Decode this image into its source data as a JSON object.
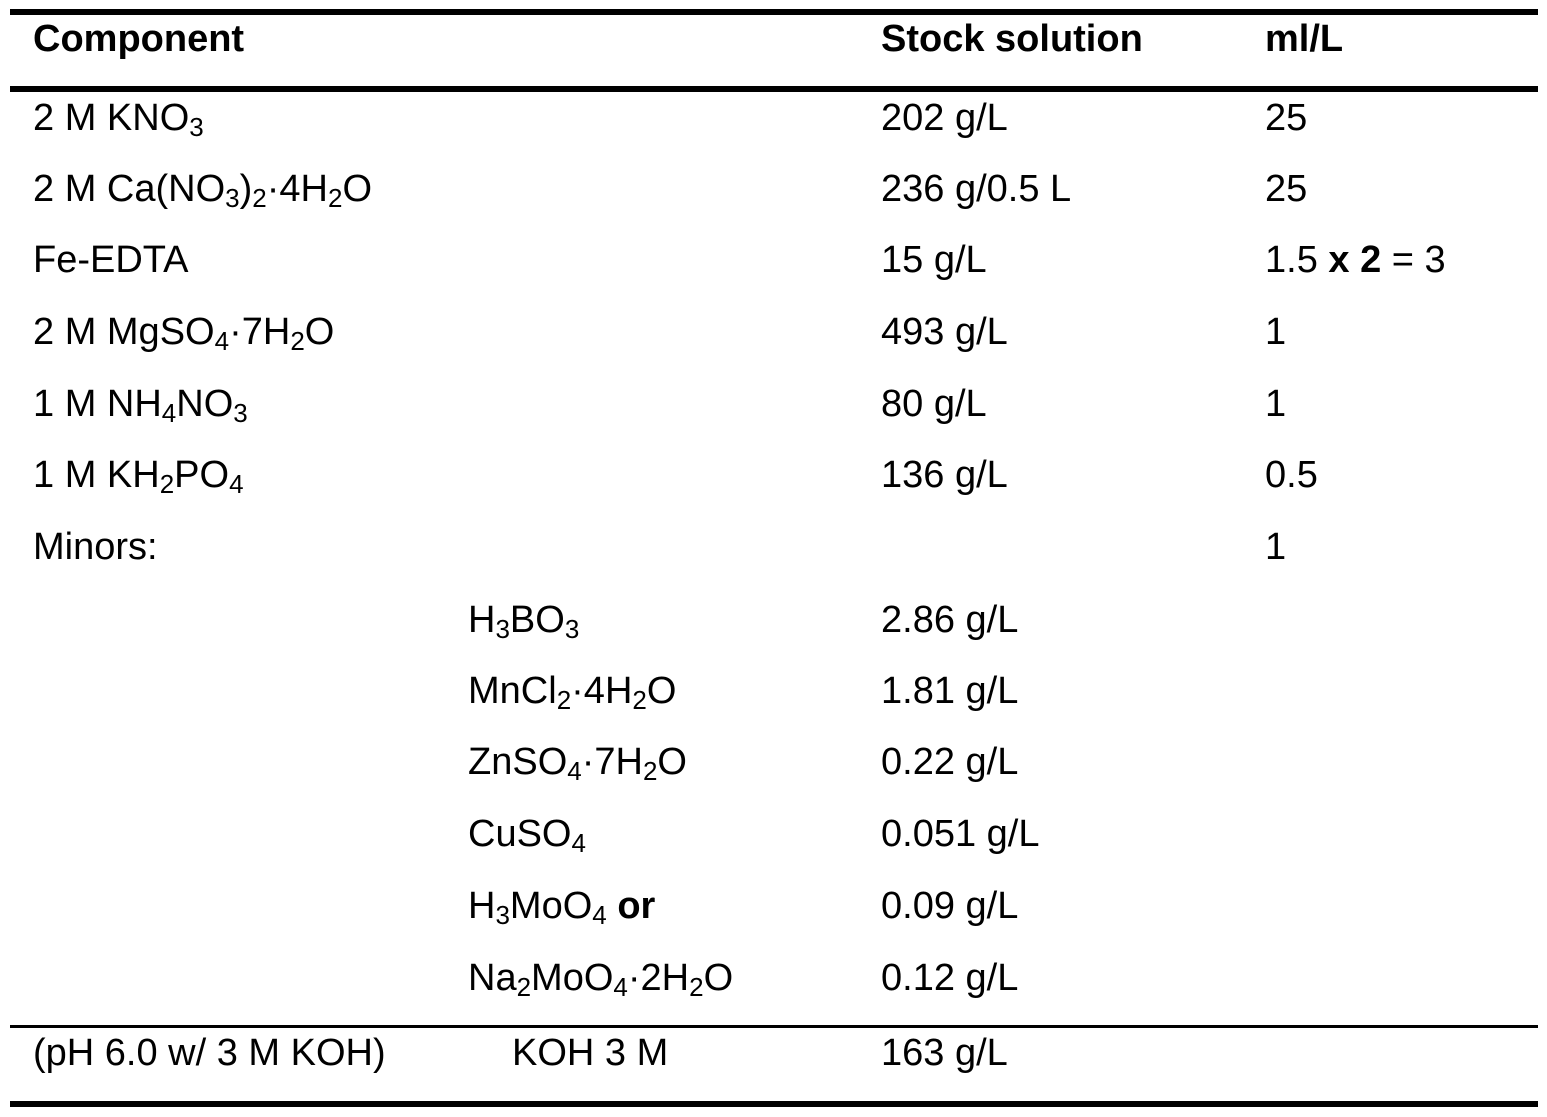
{
  "table": {
    "headers": {
      "component": "Component",
      "stock": "Stock solution",
      "mlL": "ml/L"
    },
    "rows": [
      {
        "component": [
          "2 M KNO",
          "3"
        ],
        "stock": "202 g/L",
        "mlL": "25"
      },
      {
        "component": [
          "2 M Ca(NO",
          "3",
          ")",
          "2",
          "·4H",
          "2",
          "O"
        ],
        "stock": "236 g/0.5 L",
        "mlL": "25"
      },
      {
        "component": "Fe-EDTA",
        "stock": "15 g/L",
        "mlL": [
          "1.5 ",
          "x 2",
          " = 3"
        ]
      },
      {
        "component": [
          "2 M MgSO",
          "4",
          "·7H",
          "2",
          "O"
        ],
        "stock": "493 g/L",
        "mlL": "1"
      },
      {
        "component": [
          "1 M NH",
          "4",
          "NO",
          "3"
        ],
        "stock": "80 g/L",
        "mlL": "1"
      },
      {
        "component": [
          "1 M KH",
          "2",
          "PO",
          "4"
        ],
        "stock": "136 g/L",
        "mlL": "0.5"
      },
      {
        "component": "Minors:",
        "stock": "",
        "mlL": "1"
      }
    ],
    "minors": [
      {
        "name": [
          "H",
          "3",
          "BO",
          "3"
        ],
        "stock": "2.86 g/L"
      },
      {
        "name": [
          "MnCl",
          "2",
          "·4H",
          "2",
          "O"
        ],
        "stock": "1.81 g/L"
      },
      {
        "name": [
          "ZnSO",
          "4",
          "·7H",
          "2",
          "O"
        ],
        "stock": "0.22 g/L"
      },
      {
        "name": [
          "CuSO",
          "4"
        ],
        "stock": "0.051 g/L"
      },
      {
        "name": [
          "H",
          "3",
          "MoO",
          "4",
          " ",
          "or"
        ],
        "stock": "0.09 g/L"
      },
      {
        "name": [
          "Na",
          "2",
          "MoO",
          "4",
          "·2H",
          "2",
          "O"
        ],
        "stock": "0.12 g/L"
      }
    ],
    "footer": {
      "component": "(pH 6.0 w/ 3 M KOH)",
      "sub": "KOH 3 M",
      "stock": "163 g/L"
    }
  }
}
